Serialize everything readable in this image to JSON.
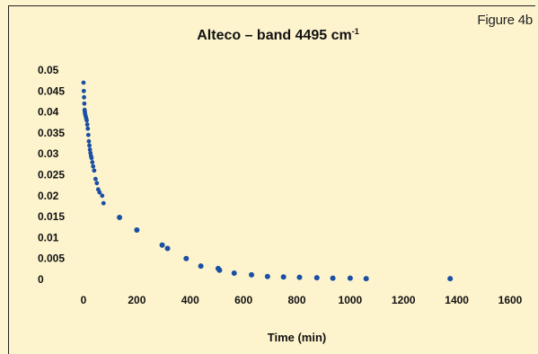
{
  "figure_tag": "Figure 4b",
  "chart_data": {
    "type": "scatter",
    "title": "Alteco – band 4495 cm",
    "title_superscript": "-1",
    "xlabel": "Time (min)",
    "ylabel": "",
    "xlim": [
      0,
      1600
    ],
    "ylim": [
      0,
      0.05
    ],
    "x_ticks": [
      "0",
      "200",
      "400",
      "600",
      "800",
      "1000",
      "1200",
      "1400",
      "1600"
    ],
    "y_ticks": [
      "0",
      "0.005",
      "0.01",
      "0.015",
      "0.02",
      "0.025",
      "0.03",
      "0.035",
      "0.04",
      "0.045",
      "0.05"
    ],
    "grid": false,
    "marker_color": "#1a4fa3",
    "series": [
      {
        "x": [
          0,
          1,
          2,
          3,
          4,
          5,
          6,
          8,
          10,
          12,
          14,
          16,
          18,
          20,
          22,
          24,
          26,
          28,
          30,
          33,
          36,
          40,
          45,
          50,
          55,
          60,
          70,
          75,
          135,
          200,
          295,
          315,
          385,
          440,
          505,
          510,
          565,
          630,
          690,
          750,
          810,
          875,
          935,
          1000,
          1060,
          1375
        ],
        "y": [
          0.047,
          0.045,
          0.0435,
          0.042,
          0.0405,
          0.04,
          0.0395,
          0.039,
          0.0385,
          0.038,
          0.037,
          0.036,
          0.0345,
          0.033,
          0.032,
          0.031,
          0.0302,
          0.0295,
          0.029,
          0.028,
          0.027,
          0.026,
          0.024,
          0.023,
          0.0215,
          0.0208,
          0.02,
          0.0182,
          0.0148,
          0.0118,
          0.0082,
          0.0074,
          0.005,
          0.0032,
          0.0026,
          0.0022,
          0.0015,
          0.0011,
          0.0007,
          0.0006,
          0.0005,
          0.0004,
          0.0003,
          0.0003,
          0.0002,
          0.0002
        ]
      }
    ]
  }
}
